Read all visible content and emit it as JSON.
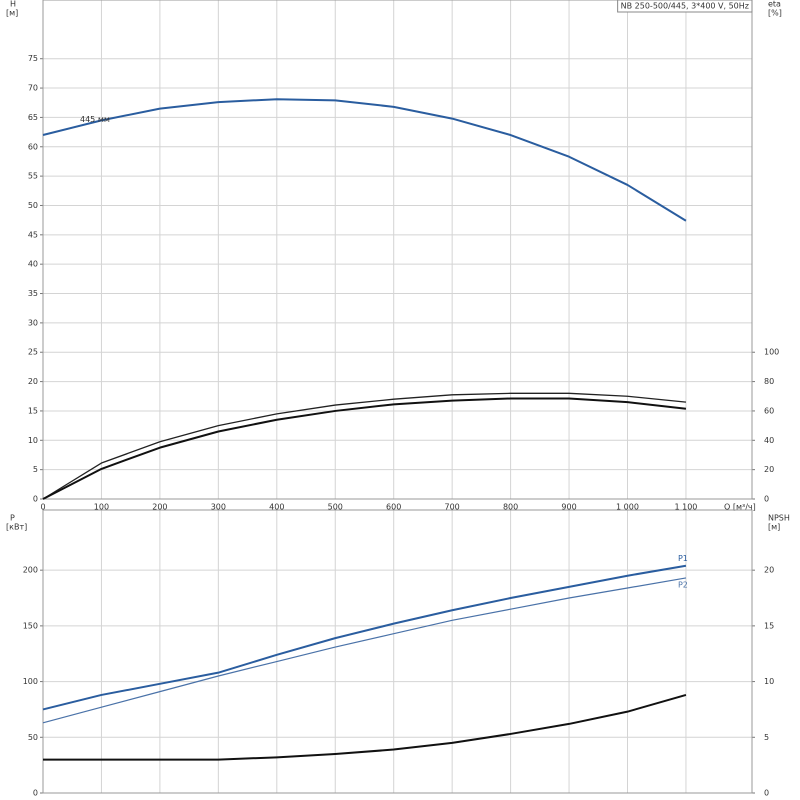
{
  "chart_data": [
    {
      "type": "line",
      "title": "NB 250-500/445, 3*400 V, 50Hz",
      "y_label": "H",
      "y_unit": "[м]",
      "y2_label": "eta",
      "y2_unit": "[%]",
      "x_label": "Q [м³/ч]",
      "annotation": "445 мм",
      "x": [
        0,
        100,
        200,
        300,
        400,
        500,
        600,
        700,
        800,
        900,
        1000,
        1100
      ],
      "xlim": [
        0,
        1213
      ],
      "xticks": [
        0,
        100,
        200,
        300,
        400,
        500,
        600,
        700,
        800,
        900,
        {
          "value": 1000,
          "label": "1 000"
        },
        {
          "value": 1100,
          "label": "1 100"
        }
      ],
      "ylim": [
        0,
        85
      ],
      "yticks": [
        0,
        5,
        10,
        15,
        20,
        25,
        30,
        35,
        40,
        45,
        50,
        55,
        60,
        65,
        70,
        75
      ],
      "y2lim": [
        0,
        340
      ],
      "y2ticks": [
        0,
        20,
        40,
        60,
        80,
        100
      ],
      "grid": true,
      "series": [
        {
          "color": "#2a5d9f",
          "line_width": 2,
          "axis": "y",
          "values": [
            62,
            64.5,
            66.5,
            67.6,
            68.1,
            67.9,
            66.8,
            64.8,
            62,
            58.3,
            53.5,
            47.4
          ]
        },
        {
          "color": "#222222",
          "line_width": 1.3,
          "axis": "y2",
          "values": [
            0,
            24.5,
            39,
            50,
            58,
            64,
            68,
            71,
            72,
            72,
            70,
            66
          ]
        },
        {
          "color": "#111111",
          "line_width": 2,
          "axis": "y2",
          "values": [
            0,
            20.5,
            35,
            46,
            54,
            60,
            64.5,
            67,
            68.5,
            68.5,
            66,
            61.5
          ]
        }
      ]
    },
    {
      "type": "line",
      "y_label": "P",
      "y_unit": "[кВт]",
      "y2_label": "NPSH",
      "y2_unit": "[м]",
      "x": [
        0,
        100,
        200,
        300,
        400,
        500,
        600,
        700,
        800,
        900,
        1000,
        1100
      ],
      "xlim": [
        0,
        1213
      ],
      "ylim": [
        0,
        254
      ],
      "yticks": [
        0,
        50,
        100,
        150,
        200
      ],
      "y2lim": [
        0,
        25.4
      ],
      "y2ticks": [
        0,
        5,
        10,
        15,
        20
      ],
      "grid": true,
      "series": [
        {
          "name": "P1",
          "color": "#2a5d9f",
          "line_width": 2,
          "axis": "y",
          "values": [
            75,
            88,
            98,
            108,
            124,
            139,
            152,
            164,
            175,
            185,
            195,
            204
          ]
        },
        {
          "name": "P2",
          "color": "#4a72a8",
          "line_width": 1.2,
          "axis": "y",
          "values": [
            63,
            77,
            91,
            105,
            118,
            131,
            143,
            155,
            165,
            175,
            184,
            193
          ]
        },
        {
          "color": "#111111",
          "line_width": 2,
          "axis": "y2",
          "values": [
            3.0,
            3.0,
            3.0,
            3.0,
            3.2,
            3.5,
            3.9,
            4.5,
            5.3,
            6.2,
            7.3,
            8.8
          ]
        }
      ]
    }
  ]
}
